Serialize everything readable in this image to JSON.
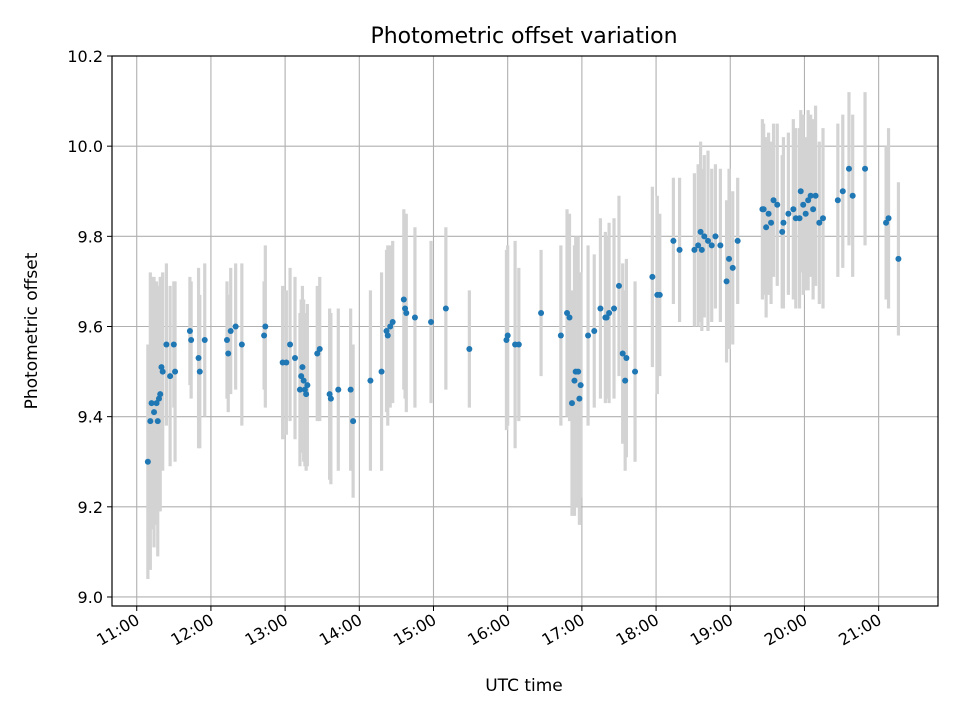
{
  "chart_data": {
    "type": "scatter",
    "title": "Photometric offset variation",
    "xlabel": "UTC time",
    "ylabel": "Photometric offset",
    "x_unit": "hours UTC",
    "xlim": [
      "10:40",
      "21:48"
    ],
    "ylim": [
      8.98,
      10.2
    ],
    "x_ticks": [
      "11:00",
      "12:00",
      "13:00",
      "14:00",
      "15:00",
      "16:00",
      "17:00",
      "18:00",
      "19:00",
      "20:00",
      "21:00"
    ],
    "y_ticks": [
      "9.0",
      "9.2",
      "9.4",
      "9.6",
      "9.8",
      "10.0",
      "10.2"
    ],
    "grid": true,
    "colors": {
      "marker": "#1f77b4",
      "errorbar": "#d3d3d3"
    },
    "series": [
      {
        "points": [
          [
            "11:09",
            9.3,
            0.26
          ],
          [
            "11:11",
            9.39,
            0.33
          ],
          [
            "11:12",
            9.43,
            0.28
          ],
          [
            "11:14",
            9.41,
            0.3
          ],
          [
            "11:16",
            9.43,
            0.27
          ],
          [
            "11:17",
            9.39,
            0.3
          ],
          [
            "11:18",
            9.44,
            0.25
          ],
          [
            "11:19",
            9.45,
            0.26
          ],
          [
            "11:20",
            9.51,
            0.2
          ],
          [
            "11:21",
            9.5,
            0.22
          ],
          [
            "11:24",
            9.56,
            0.18
          ],
          [
            "11:27",
            9.49,
            0.2
          ],
          [
            "11:30",
            9.56,
            0.14
          ],
          [
            "11:31",
            9.5,
            0.2
          ],
          [
            "11:43",
            9.59,
            0.12
          ],
          [
            "11:44",
            9.57,
            0.13
          ],
          [
            "11:50",
            9.53,
            0.2
          ],
          [
            "11:51",
            9.5,
            0.17
          ],
          [
            "11:55",
            9.57,
            0.17
          ],
          [
            "12:13",
            9.57,
            0.13
          ],
          [
            "12:14",
            9.54,
            0.13
          ],
          [
            "12:16",
            9.59,
            0.14
          ],
          [
            "12:20",
            9.6,
            0.14
          ],
          [
            "12:25",
            9.56,
            0.18
          ],
          [
            "12:43",
            9.58,
            0.12
          ],
          [
            "12:44",
            9.6,
            0.18
          ],
          [
            "12:58",
            9.52,
            0.17
          ],
          [
            "13:01",
            9.52,
            0.16
          ],
          [
            "13:04",
            9.56,
            0.17
          ],
          [
            "13:08",
            9.53,
            0.18
          ],
          [
            "13:12",
            9.46,
            0.17
          ],
          [
            "13:13",
            9.49,
            0.17
          ],
          [
            "13:14",
            9.51,
            0.18
          ],
          [
            "13:15",
            9.48,
            0.18
          ],
          [
            "13:16",
            9.46,
            0.17
          ],
          [
            "13:17",
            9.45,
            0.17
          ],
          [
            "13:18",
            9.47,
            0.18
          ],
          [
            "13:26",
            9.54,
            0.15
          ],
          [
            "13:28",
            9.55,
            0.16
          ],
          [
            "13:36",
            9.45,
            0.19
          ],
          [
            "13:37",
            9.44,
            0.19
          ],
          [
            "13:43",
            9.46,
            0.18
          ],
          [
            "13:53",
            9.46,
            0.18
          ],
          [
            "13:55",
            9.39,
            0.17
          ],
          [
            "14:09",
            9.48,
            0.2
          ],
          [
            "14:18",
            9.5,
            0.22
          ],
          [
            "14:22",
            9.59,
            0.18
          ],
          [
            "14:23",
            9.58,
            0.2
          ],
          [
            "14:25",
            9.6,
            0.18
          ],
          [
            "14:27",
            9.61,
            0.18
          ],
          [
            "14:36",
            9.66,
            0.2
          ],
          [
            "14:37",
            9.64,
            0.2
          ],
          [
            "14:38",
            9.63,
            0.22
          ],
          [
            "14:45",
            9.62,
            0.2
          ],
          [
            "14:58",
            9.61,
            0.18
          ],
          [
            "15:10",
            9.64,
            0.18
          ],
          [
            "15:29",
            9.55,
            0.13
          ],
          [
            "15:59",
            9.57,
            0.2
          ],
          [
            "16:00",
            9.58,
            0.2
          ],
          [
            "16:06",
            9.56,
            0.23
          ],
          [
            "16:09",
            9.56,
            0.17
          ],
          [
            "16:27",
            9.63,
            0.14
          ],
          [
            "16:43",
            9.58,
            0.2
          ],
          [
            "16:48",
            9.63,
            0.23
          ],
          [
            "16:50",
            9.62,
            0.23
          ],
          [
            "16:52",
            9.43,
            0.25
          ],
          [
            "16:54",
            9.48,
            0.3
          ],
          [
            "16:55",
            9.5,
            0.3
          ],
          [
            "16:57",
            9.5,
            0.3
          ],
          [
            "16:58",
            9.44,
            0.28
          ],
          [
            "16:59",
            9.47,
            0.25
          ],
          [
            "17:05",
            9.58,
            0.2
          ],
          [
            "17:10",
            9.59,
            0.17
          ],
          [
            "17:15",
            9.64,
            0.2
          ],
          [
            "17:19",
            9.62,
            0.19
          ],
          [
            "17:20",
            9.62,
            0.18
          ],
          [
            "17:22",
            9.63,
            0.2
          ],
          [
            "17:26",
            9.64,
            0.2
          ],
          [
            "17:30",
            9.69,
            0.2
          ],
          [
            "17:33",
            9.54,
            0.2
          ],
          [
            "17:35",
            9.48,
            0.2
          ],
          [
            "17:36",
            9.53,
            0.22
          ],
          [
            "17:43",
            9.5,
            0.2
          ],
          [
            "17:57",
            9.71,
            0.2
          ],
          [
            "18:01",
            9.67,
            0.22
          ],
          [
            "18:03",
            9.67,
            0.18
          ],
          [
            "18:14",
            9.79,
            0.14
          ],
          [
            "18:19",
            9.77,
            0.16
          ],
          [
            "18:31",
            9.77,
            0.17
          ],
          [
            "18:34",
            9.78,
            0.18
          ],
          [
            "18:36",
            9.81,
            0.2
          ],
          [
            "18:37",
            9.77,
            0.18
          ],
          [
            "18:39",
            9.8,
            0.18
          ],
          [
            "18:42",
            9.79,
            0.2
          ],
          [
            "18:45",
            9.78,
            0.17
          ],
          [
            "18:48",
            9.8,
            0.16
          ],
          [
            "18:52",
            9.78,
            0.17
          ],
          [
            "18:57",
            9.7,
            0.18
          ],
          [
            "18:59",
            9.75,
            0.2
          ],
          [
            "19:02",
            9.73,
            0.17
          ],
          [
            "19:06",
            9.79,
            0.14
          ],
          [
            "19:26",
            9.86,
            0.2
          ],
          [
            "19:27",
            9.86,
            0.19
          ],
          [
            "19:29",
            9.82,
            0.2
          ],
          [
            "19:31",
            9.85,
            0.18
          ],
          [
            "19:33",
            9.83,
            0.18
          ],
          [
            "19:35",
            9.88,
            0.17
          ],
          [
            "19:38",
            9.87,
            0.18
          ],
          [
            "19:42",
            9.81,
            0.17
          ],
          [
            "19:43",
            9.83,
            0.19
          ],
          [
            "19:47",
            9.85,
            0.18
          ],
          [
            "19:51",
            9.86,
            0.2
          ],
          [
            "19:53",
            9.84,
            0.2
          ],
          [
            "19:56",
            9.84,
            0.2
          ],
          [
            "19:57",
            9.9,
            0.18
          ],
          [
            "19:59",
            9.87,
            0.2
          ],
          [
            "20:01",
            9.85,
            0.17
          ],
          [
            "20:03",
            9.88,
            0.2
          ],
          [
            "20:05",
            9.89,
            0.18
          ],
          [
            "20:07",
            9.86,
            0.2
          ],
          [
            "20:09",
            9.89,
            0.2
          ],
          [
            "20:12",
            9.83,
            0.18
          ],
          [
            "20:15",
            9.84,
            0.2
          ],
          [
            "20:27",
            9.88,
            0.17
          ],
          [
            "20:31",
            9.9,
            0.17
          ],
          [
            "20:36",
            9.95,
            0.17
          ],
          [
            "20:39",
            9.89,
            0.18
          ],
          [
            "20:49",
            9.95,
            0.17
          ],
          [
            "21:06",
            9.83,
            0.17
          ],
          [
            "21:08",
            9.84,
            0.2
          ],
          [
            "21:16",
            9.75,
            0.17
          ]
        ]
      }
    ]
  }
}
